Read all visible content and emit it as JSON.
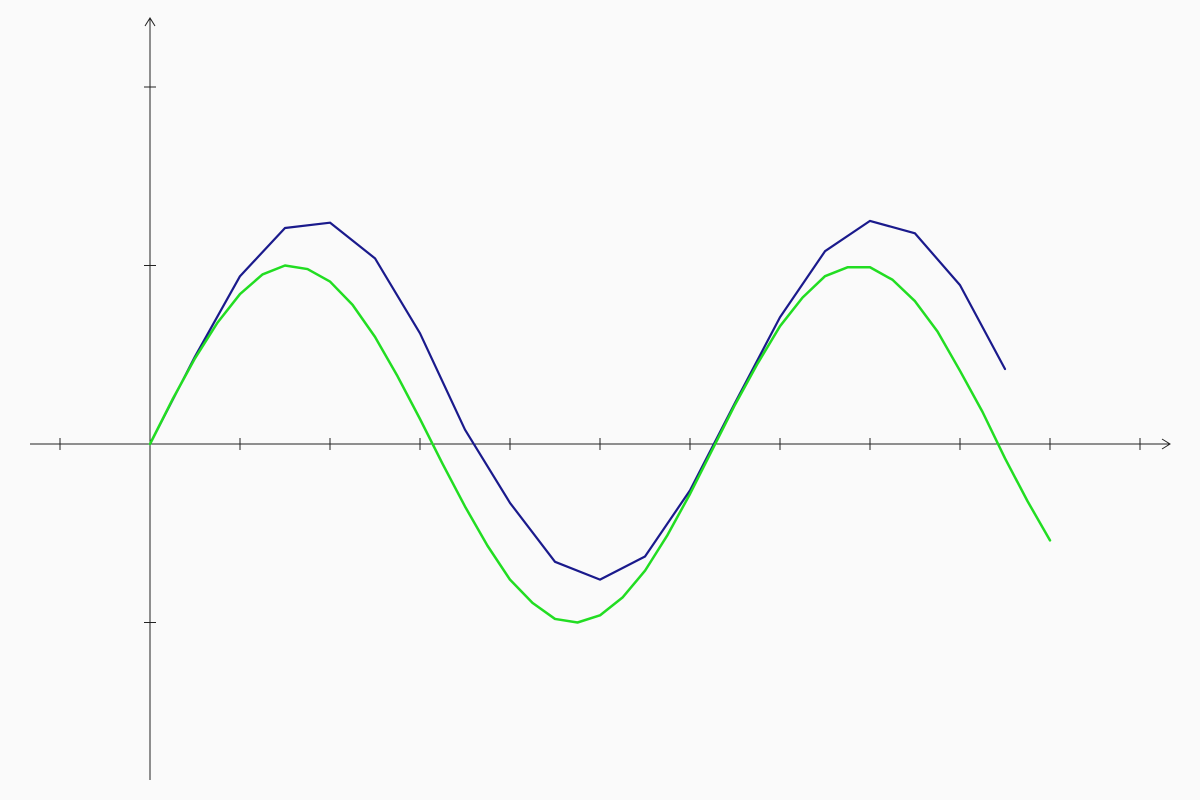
{
  "chart_data": {
    "type": "line",
    "title": "",
    "xlabel": "",
    "ylabel": "",
    "xlim": [
      -1.33,
      11.34
    ],
    "ylim": [
      -1.88,
      2.38
    ],
    "grid": false,
    "legend": "none",
    "x_ticks": [
      -1,
      1,
      2,
      3,
      4,
      5,
      6,
      7,
      8,
      9,
      10,
      11
    ],
    "y_ticks": [
      -1,
      1,
      2
    ],
    "series": [
      {
        "kind": "sampled",
        "color": "#1a1a8c",
        "x": [
          0,
          0.5,
          1,
          1.5,
          2,
          2.5,
          3,
          3.5,
          4,
          4.5,
          5,
          5.5,
          6,
          6.5,
          7,
          7.5,
          8,
          8.5,
          9,
          9.5
        ],
        "y": [
          0,
          0.49,
          0.94,
          1.21,
          1.24,
          1.04,
          0.62,
          0.08,
          -0.33,
          -0.66,
          -0.76,
          -0.63,
          -0.26,
          0.23,
          0.71,
          1.08,
          1.25,
          1.18,
          0.89,
          0.42
        ]
      },
      {
        "kind": "smooth",
        "color": "#22dd22",
        "x": [
          0,
          0.25,
          0.5,
          0.75,
          1,
          1.25,
          1.5,
          1.75,
          2,
          2.25,
          2.5,
          2.75,
          3,
          3.25,
          3.5,
          3.75,
          4,
          4.25,
          4.5,
          4.75,
          5,
          5.25,
          5.5,
          5.75,
          6,
          6.25,
          6.5,
          6.75,
          7,
          7.25,
          7.5,
          7.75,
          8,
          8.25,
          8.5,
          8.75,
          9,
          9.25,
          9.5,
          9.75,
          10
        ],
        "y": [
          0,
          0.25,
          0.48,
          0.68,
          0.84,
          0.95,
          1.0,
          0.98,
          0.91,
          0.78,
          0.6,
          0.38,
          0.14,
          -0.11,
          -0.35,
          -0.57,
          -0.76,
          -0.89,
          -0.98,
          -1.0,
          -0.96,
          -0.86,
          -0.71,
          -0.51,
          -0.28,
          -0.03,
          0.22,
          0.45,
          0.66,
          0.82,
          0.94,
          0.99,
          0.99,
          0.92,
          0.8,
          0.63,
          0.41,
          0.18,
          -0.08,
          -0.32,
          -0.54
        ]
      }
    ]
  }
}
